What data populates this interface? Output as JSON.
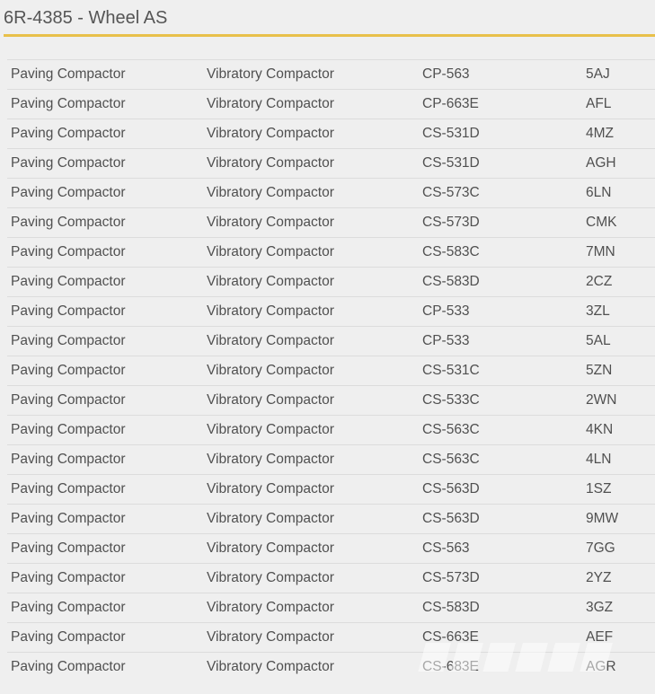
{
  "header": {
    "title": "6R-4385 - Wheel AS"
  },
  "table": {
    "rows": [
      [
        "Paving Compactor",
        "Vibratory Compactor",
        "CP-563",
        "5AJ"
      ],
      [
        "Paving Compactor",
        "Vibratory Compactor",
        "CP-663E",
        "AFL"
      ],
      [
        "Paving Compactor",
        "Vibratory Compactor",
        "CS-531D",
        "4MZ"
      ],
      [
        "Paving Compactor",
        "Vibratory Compactor",
        "CS-531D",
        "AGH"
      ],
      [
        "Paving Compactor",
        "Vibratory Compactor",
        "CS-573C",
        "6LN"
      ],
      [
        "Paving Compactor",
        "Vibratory Compactor",
        "CS-573D",
        "CMK"
      ],
      [
        "Paving Compactor",
        "Vibratory Compactor",
        "CS-583C",
        "7MN"
      ],
      [
        "Paving Compactor",
        "Vibratory Compactor",
        "CS-583D",
        "2CZ"
      ],
      [
        "Paving Compactor",
        "Vibratory Compactor",
        "CP-533",
        "3ZL"
      ],
      [
        "Paving Compactor",
        "Vibratory Compactor",
        "CP-533",
        "5AL"
      ],
      [
        "Paving Compactor",
        "Vibratory Compactor",
        "CS-531C",
        "5ZN"
      ],
      [
        "Paving Compactor",
        "Vibratory Compactor",
        "CS-533C",
        "2WN"
      ],
      [
        "Paving Compactor",
        "Vibratory Compactor",
        "CS-563C",
        "4KN"
      ],
      [
        "Paving Compactor",
        "Vibratory Compactor",
        "CS-563C",
        "4LN"
      ],
      [
        "Paving Compactor",
        "Vibratory Compactor",
        "CS-563D",
        "1SZ"
      ],
      [
        "Paving Compactor",
        "Vibratory Compactor",
        "CS-563D",
        "9MW"
      ],
      [
        "Paving Compactor",
        "Vibratory Compactor",
        "CS-563",
        "7GG"
      ],
      [
        "Paving Compactor",
        "Vibratory Compactor",
        "CS-573D",
        "2YZ"
      ],
      [
        "Paving Compactor",
        "Vibratory Compactor",
        "CS-583D",
        "3GZ"
      ],
      [
        "Paving Compactor",
        "Vibratory Compactor",
        "CS-663E",
        "AEF"
      ],
      [
        "Paving Compactor",
        "Vibratory Compactor",
        "CS-683E",
        "AGR"
      ]
    ]
  },
  "colors": {
    "accent": "#e8c04a",
    "background": "#efefef",
    "text": "#505050"
  },
  "watermark": "MASCUS"
}
